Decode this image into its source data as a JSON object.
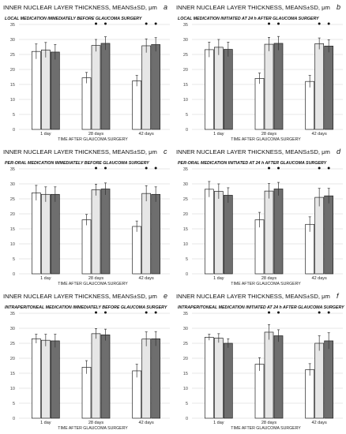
{
  "figure": {
    "bar_colors": [
      "#ffffff",
      "#e6e6e6",
      "#6e6e6e"
    ],
    "bar_stroke": "#222222",
    "grid_color": "#cfcfcf"
  },
  "chart_data": [
    {
      "type": "bar",
      "panel_letter": "a",
      "title": "INNER NUCLEAR LAYER THICKNESS, MEANS±SD, μm",
      "subtitle": "LOCAL MEDICATION IMMEDIATELY BEFORE GLAUCOMA SURGERY",
      "xlabel": "TIME AFTER GLAUCOMA SURGERY",
      "ylim": [
        0,
        35
      ],
      "yticks": [
        0,
        5,
        10,
        15,
        20,
        25,
        30,
        35
      ],
      "grid": true,
      "categories": [
        "1 day",
        "28 days",
        "42 days"
      ],
      "series": [
        {
          "values": [
            26.0,
            17.2,
            16.2
          ],
          "errors": [
            2.5,
            1.8,
            1.8
          ],
          "significant": [
            false,
            false,
            false
          ]
        },
        {
          "values": [
            26.5,
            28.0,
            27.9
          ],
          "errors": [
            2.5,
            2.0,
            2.3
          ],
          "significant": [
            false,
            true,
            true
          ]
        },
        {
          "values": [
            25.8,
            28.7,
            28.3
          ],
          "errors": [
            2.5,
            2.2,
            2.3
          ],
          "significant": [
            false,
            true,
            true
          ]
        }
      ]
    },
    {
      "type": "bar",
      "panel_letter": "b",
      "title": "INNER NUCLEAR LAYER THICKNESS, MEANS±SD, μm",
      "subtitle": "LOCAL MEDICATION INITIATED AT 24 h AFTER GLAUCOMA SURGERY",
      "xlabel": "TIME AFTER GLAUCOMA SURGERY",
      "ylim": [
        0,
        35
      ],
      "yticks": [
        0,
        5,
        10,
        15,
        20,
        25,
        30,
        35
      ],
      "grid": true,
      "categories": [
        "1 day",
        "28 days",
        "42 days"
      ],
      "series": [
        {
          "values": [
            26.6,
            17.0,
            16.0
          ],
          "errors": [
            2.5,
            1.8,
            2.0
          ],
          "significant": [
            false,
            false,
            false
          ]
        },
        {
          "values": [
            27.4,
            28.4,
            28.6
          ],
          "errors": [
            2.6,
            2.3,
            1.9
          ],
          "significant": [
            false,
            true,
            true
          ]
        },
        {
          "values": [
            26.7,
            28.7,
            27.8
          ],
          "errors": [
            2.4,
            2.3,
            2.1
          ],
          "significant": [
            false,
            true,
            true
          ]
        }
      ]
    },
    {
      "type": "bar",
      "panel_letter": "c",
      "title": "INNER NUCLEAR LAYER THICKNESS, MEANS±SD, μm",
      "subtitle": "PER-ORAL MEDICATION IMMEDIATELY BEFORE GLAUCOMA SURGERY",
      "xlabel": "TIME AFTER GLAUCOMA SURGERY",
      "ylim": [
        0,
        35
      ],
      "yticks": [
        0,
        5,
        10,
        15,
        20,
        25,
        30,
        35
      ],
      "grid": true,
      "categories": [
        "1 day",
        "28 days",
        "42 days"
      ],
      "series": [
        {
          "values": [
            27.0,
            18.0,
            15.8
          ],
          "errors": [
            2.5,
            1.8,
            1.8
          ],
          "significant": [
            false,
            false,
            false
          ]
        },
        {
          "values": [
            26.5,
            28.0,
            26.8
          ],
          "errors": [
            2.5,
            1.9,
            2.6
          ],
          "significant": [
            false,
            true,
            true
          ]
        },
        {
          "values": [
            26.5,
            28.3,
            26.5
          ],
          "errors": [
            2.5,
            2.0,
            2.5
          ],
          "significant": [
            false,
            true,
            true
          ]
        }
      ]
    },
    {
      "type": "bar",
      "panel_letter": "d",
      "title": "INNER NUCLEAR LAYER THICKNESS, MEANS±SD, μm",
      "subtitle": "PER-ORAL MEDICATION INITIATED AT 24 h AFTER GLAUCOMA SURGERY",
      "xlabel": "TIME AFTER GLAUCOMA SURGERY",
      "ylim": [
        0,
        35
      ],
      "yticks": [
        0,
        5,
        10,
        15,
        20,
        25,
        30,
        35
      ],
      "grid": true,
      "categories": [
        "1 day",
        "28 days",
        "42 days"
      ],
      "series": [
        {
          "values": [
            28.2,
            18.0,
            16.5
          ],
          "errors": [
            2.6,
            2.5,
            2.5
          ],
          "significant": [
            false,
            false,
            false
          ]
        },
        {
          "values": [
            27.5,
            27.6,
            25.5
          ],
          "errors": [
            2.5,
            2.5,
            3.0
          ],
          "significant": [
            false,
            true,
            true
          ]
        },
        {
          "values": [
            26.2,
            28.3,
            26.0
          ],
          "errors": [
            2.5,
            2.2,
            2.5
          ],
          "significant": [
            false,
            true,
            true
          ]
        }
      ]
    },
    {
      "type": "bar",
      "panel_letter": "e",
      "title": "INNER NUCLEAR LAYER THICKNESS, MEANS±SD, μm",
      "subtitle": "INTRAPERITONEAL MEDICATION IMMEDIATELY BEFORE GLAUCOMA SURGERY",
      "xlabel": "TIME AFTER GLAUCOMA SURGERY",
      "ylim": [
        0,
        35
      ],
      "yticks": [
        0,
        5,
        10,
        15,
        20,
        25,
        30,
        35
      ],
      "grid": true,
      "categories": [
        "1 day",
        "28 days",
        "42 days"
      ],
      "series": [
        {
          "values": [
            26.5,
            17.0,
            15.8
          ],
          "errors": [
            1.5,
            2.2,
            2.2
          ],
          "significant": [
            false,
            false,
            false
          ]
        },
        {
          "values": [
            26.0,
            28.2,
            26.4
          ],
          "errors": [
            2.0,
            1.7,
            2.4
          ],
          "significant": [
            false,
            true,
            true
          ]
        },
        {
          "values": [
            25.8,
            27.8,
            26.5
          ],
          "errors": [
            2.2,
            1.9,
            2.4
          ],
          "significant": [
            false,
            true,
            true
          ]
        }
      ]
    },
    {
      "type": "bar",
      "panel_letter": "f",
      "title": "INNER NUCLEAR LAYER THICKNESS, MEANS±SD, μm",
      "subtitle": "INTRAPERITONEAL MEDICATION INITIATED AT 24 h AFTER GLAUCOMA SURGERY",
      "xlabel": "TIME AFTER GLAUCOMA SURGERY",
      "ylim": [
        0,
        35
      ],
      "yticks": [
        0,
        5,
        10,
        15,
        20,
        25,
        30,
        35
      ],
      "grid": true,
      "categories": [
        "1 day",
        "28 days",
        "42 days"
      ],
      "series": [
        {
          "values": [
            27.0,
            18.0,
            16.2
          ],
          "errors": [
            1.0,
            2.2,
            2.0
          ],
          "significant": [
            false,
            false,
            false
          ]
        },
        {
          "values": [
            26.7,
            28.7,
            25.0
          ],
          "errors": [
            1.5,
            2.5,
            2.5
          ],
          "significant": [
            false,
            true,
            true
          ]
        },
        {
          "values": [
            25.0,
            27.5,
            25.8
          ],
          "errors": [
            1.5,
            2.0,
            2.7
          ],
          "significant": [
            false,
            true,
            true
          ]
        }
      ]
    }
  ]
}
